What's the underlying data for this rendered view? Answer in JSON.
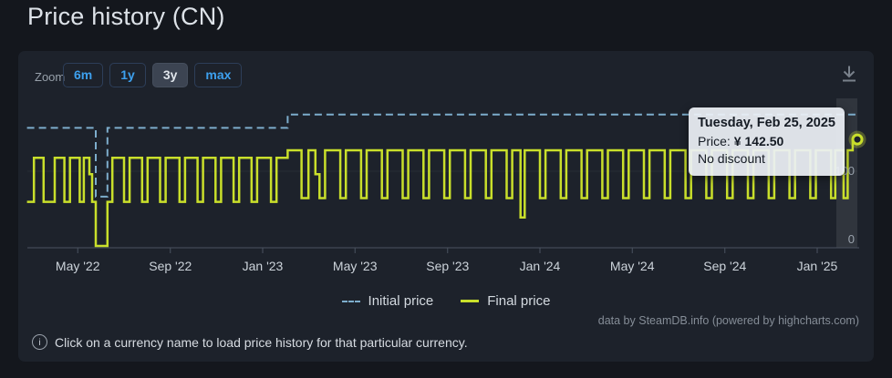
{
  "page": {
    "title": "Price history (CN)"
  },
  "toolbar": {
    "zoom_label": "Zoom",
    "buttons": [
      {
        "label": "6m",
        "selected": false
      },
      {
        "label": "1y",
        "selected": false
      },
      {
        "label": "3y",
        "selected": true
      },
      {
        "label": "max",
        "selected": false
      }
    ],
    "download_icon": "download-icon"
  },
  "tooltip": {
    "title": "Tuesday, Feb 25, 2025",
    "price_label": "Price:",
    "price_value": "¥ 142.50",
    "discount": "No discount"
  },
  "legend": [
    {
      "label": "Initial price",
      "style": "dashed",
      "color": "#7dadcc"
    },
    {
      "label": "Final price",
      "style": "solid",
      "color": "#c9df2b"
    }
  ],
  "credits": "data by SteamDB.info (powered by highcharts.com)",
  "footer": {
    "text": "Click on a currency name to load price history for that particular currency."
  },
  "colors": {
    "page_bg": "#14171d",
    "panel_bg": "#1d222b",
    "accent_blue": "#3da0ee",
    "initial_line": "#7dadcc",
    "final_line": "#c9df2b",
    "axis": "#4a5360",
    "tick_label": "#ccd3da",
    "crosshair_band": "rgba(255,255,255,0.085)"
  },
  "chart_data": {
    "type": "line",
    "subtype": "step-line",
    "title": "Price history (CN)",
    "currency": "CNY (¥)",
    "grid": "minimal",
    "legend_position": "bottom-center",
    "x_axis": {
      "kind": "date",
      "start_decimal_year": 2022.15,
      "end_decimal_year": 2025.145,
      "ticks": [
        {
          "t": 2022.333,
          "label": "May '22"
        },
        {
          "t": 2022.667,
          "label": "Sep '22"
        },
        {
          "t": 2023.0,
          "label": "Jan '23"
        },
        {
          "t": 2023.333,
          "label": "May '23"
        },
        {
          "t": 2023.667,
          "label": "Sep '23"
        },
        {
          "t": 2024.0,
          "label": "Jan '24"
        },
        {
          "t": 2024.333,
          "label": "May '24"
        },
        {
          "t": 2024.667,
          "label": "Sep '24"
        },
        {
          "t": 2025.0,
          "label": "Jan '25"
        }
      ]
    },
    "y_axis": {
      "range": [
        0,
        200
      ],
      "ticks": [
        {
          "value": 0,
          "label": "0"
        },
        {
          "value": 100,
          "label": "100"
        }
      ]
    },
    "series": [
      {
        "name": "Initial price",
        "style": "dashed",
        "color": "#7dadcc",
        "width": 2,
        "points": [
          [
            2022.15,
            158
          ],
          [
            2022.398,
            66
          ],
          [
            2022.44,
            158
          ],
          [
            2023.09,
            176
          ],
          [
            2025.145,
            176
          ]
        ]
      },
      {
        "name": "Final price",
        "style": "solid",
        "color": "#c9df2b",
        "width": 2.5,
        "points": [
          [
            2022.15,
            59
          ],
          [
            2022.175,
            118
          ],
          [
            2022.21,
            59
          ],
          [
            2022.25,
            118
          ],
          [
            2022.285,
            59
          ],
          [
            2022.305,
            118
          ],
          [
            2022.34,
            59
          ],
          [
            2022.355,
            118
          ],
          [
            2022.375,
            96
          ],
          [
            2022.385,
            59
          ],
          [
            2022.398,
            0
          ],
          [
            2022.44,
            59
          ],
          [
            2022.458,
            118
          ],
          [
            2022.5,
            59
          ],
          [
            2022.52,
            118
          ],
          [
            2022.565,
            59
          ],
          [
            2022.585,
            118
          ],
          [
            2022.63,
            59
          ],
          [
            2022.65,
            118
          ],
          [
            2022.7,
            59
          ],
          [
            2022.72,
            118
          ],
          [
            2022.765,
            59
          ],
          [
            2022.785,
            118
          ],
          [
            2022.83,
            59
          ],
          [
            2022.85,
            118
          ],
          [
            2022.895,
            59
          ],
          [
            2022.915,
            118
          ],
          [
            2022.96,
            59
          ],
          [
            2022.98,
            118
          ],
          [
            2023.03,
            59
          ],
          [
            2023.05,
            118
          ],
          [
            2023.09,
            128
          ],
          [
            2023.14,
            64
          ],
          [
            2023.165,
            128
          ],
          [
            2023.19,
            96
          ],
          [
            2023.205,
            64
          ],
          [
            2023.225,
            128
          ],
          [
            2023.28,
            64
          ],
          [
            2023.3,
            128
          ],
          [
            2023.355,
            64
          ],
          [
            2023.375,
            128
          ],
          [
            2023.43,
            64
          ],
          [
            2023.45,
            128
          ],
          [
            2023.505,
            64
          ],
          [
            2023.525,
            128
          ],
          [
            2023.58,
            64
          ],
          [
            2023.6,
            128
          ],
          [
            2023.655,
            64
          ],
          [
            2023.675,
            128
          ],
          [
            2023.73,
            64
          ],
          [
            2023.75,
            128
          ],
          [
            2023.805,
            64
          ],
          [
            2023.825,
            128
          ],
          [
            2023.88,
            64
          ],
          [
            2023.9,
            128
          ],
          [
            2023.93,
            38
          ],
          [
            2023.945,
            128
          ],
          [
            2024.0,
            64
          ],
          [
            2024.02,
            128
          ],
          [
            2024.075,
            64
          ],
          [
            2024.095,
            128
          ],
          [
            2024.15,
            64
          ],
          [
            2024.17,
            128
          ],
          [
            2024.225,
            64
          ],
          [
            2024.245,
            128
          ],
          [
            2024.3,
            64
          ],
          [
            2024.32,
            128
          ],
          [
            2024.375,
            64
          ],
          [
            2024.395,
            128
          ],
          [
            2024.45,
            64
          ],
          [
            2024.47,
            128
          ],
          [
            2024.525,
            64
          ],
          [
            2024.545,
            128
          ],
          [
            2024.6,
            64
          ],
          [
            2024.62,
            128
          ],
          [
            2024.675,
            64
          ],
          [
            2024.695,
            128
          ],
          [
            2024.75,
            64
          ],
          [
            2024.77,
            128
          ],
          [
            2024.825,
            64
          ],
          [
            2024.845,
            128
          ],
          [
            2024.9,
            64
          ],
          [
            2024.92,
            128
          ],
          [
            2024.975,
            64
          ],
          [
            2024.995,
            128
          ],
          [
            2025.05,
            64
          ],
          [
            2025.065,
            128
          ],
          [
            2025.095,
            64
          ],
          [
            2025.11,
            128
          ],
          [
            2025.128,
            142.5
          ]
        ]
      }
    ],
    "hover_point": {
      "t": 2025.145,
      "v": 142.5,
      "date": "Tuesday, Feb 25, 2025",
      "price": "¥ 142.50",
      "discount": "No discount"
    }
  }
}
